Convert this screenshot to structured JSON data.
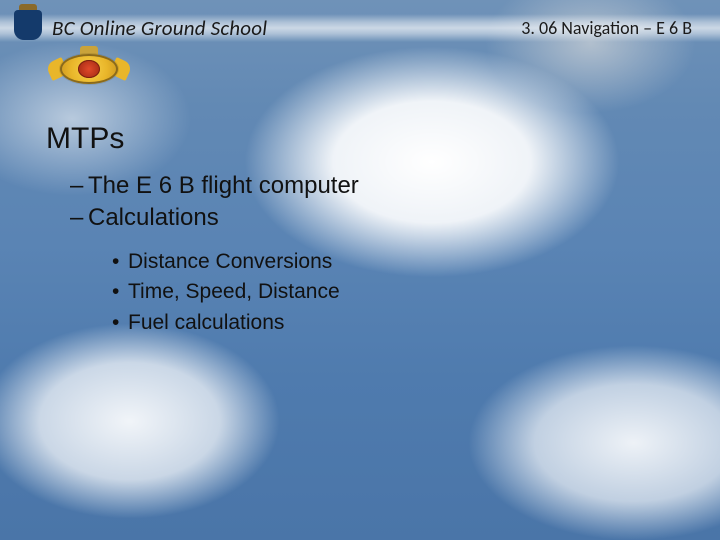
{
  "header": {
    "left": "BC Online Ground School",
    "right": "3. 06 Navigation – E 6 B"
  },
  "title": "MTPs",
  "dash_items": [
    "The E 6 B flight computer",
    "Calculations"
  ],
  "bullet_items": [
    "Distance Conversions",
    "Time, Speed, Distance",
    "Fuel calculations"
  ]
}
